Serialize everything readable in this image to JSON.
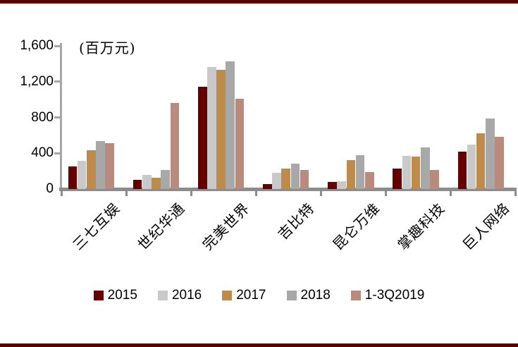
{
  "page": {
    "rule_color": "#5f0000"
  },
  "chart": {
    "axis_color": "#a6a6a6",
    "baseline_color": "#8c8c8c",
    "text_color": "#000000"
  },
  "chart_data": {
    "type": "bar",
    "title": "",
    "unit": "(百万元)",
    "ylabel": "百万元",
    "ylim": [
      0,
      1600
    ],
    "grid": false,
    "legend_position": "bottom",
    "yticks": [
      {
        "value": 0,
        "label": "0"
      },
      {
        "value": 400,
        "label": "400"
      },
      {
        "value": 800,
        "label": "800"
      },
      {
        "value": 1200,
        "label": "1,200"
      },
      {
        "value": 1600,
        "label": "1,600"
      }
    ],
    "categories": [
      "三七互娱",
      "世纪华通",
      "完美世界",
      "吉比特",
      "昆仑万维",
      "掌趣科技",
      "巨人网络"
    ],
    "series": [
      {
        "name": "2015",
        "color": "#660000",
        "values": [
          255,
          100,
          1140,
          55,
          75,
          230,
          415
        ]
      },
      {
        "name": "2016",
        "color": "#c9c9c9",
        "values": [
          315,
          155,
          1360,
          180,
          85,
          370,
          500
        ]
      },
      {
        "name": "2017",
        "color": "#bf8b4a",
        "values": [
          430,
          130,
          1330,
          225,
          325,
          365,
          625
        ]
      },
      {
        "name": "2018",
        "color": "#a8a8a8",
        "values": [
          535,
          210,
          1425,
          280,
          380,
          465,
          790
        ]
      },
      {
        "name": "1-3Q2019",
        "color": "#b98b7e",
        "values": [
          510,
          960,
          1010,
          215,
          190,
          215,
          585
        ]
      }
    ]
  }
}
